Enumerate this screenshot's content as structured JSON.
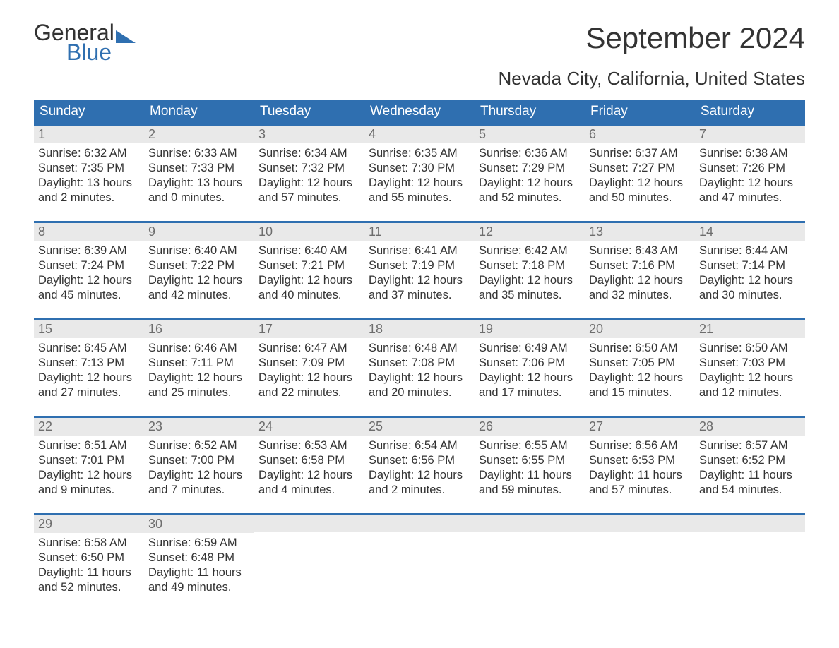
{
  "brand": {
    "top": "General",
    "bottom": "Blue"
  },
  "title": "September 2024",
  "subtitle": "Nevada City, California, United States",
  "colors": {
    "header_bg": "#2f6fb0",
    "header_text": "#ffffff",
    "daynum_bg": "#e9e9e9",
    "daynum_text": "#6d6d6d",
    "body_text": "#333333",
    "page_bg": "#ffffff",
    "week_border": "#2f6fb0",
    "brand_blue": "#2f6fb0"
  },
  "weekday_labels": [
    "Sunday",
    "Monday",
    "Tuesday",
    "Wednesday",
    "Thursday",
    "Friday",
    "Saturday"
  ],
  "labels": {
    "sunrise": "Sunrise:",
    "sunset": "Sunset:",
    "daylight": "Daylight:"
  },
  "weeks": [
    [
      {
        "n": "1",
        "sunrise": "6:32 AM",
        "sunset": "7:35 PM",
        "daylight1": "13 hours",
        "daylight2": "and 2 minutes."
      },
      {
        "n": "2",
        "sunrise": "6:33 AM",
        "sunset": "7:33 PM",
        "daylight1": "13 hours",
        "daylight2": "and 0 minutes."
      },
      {
        "n": "3",
        "sunrise": "6:34 AM",
        "sunset": "7:32 PM",
        "daylight1": "12 hours",
        "daylight2": "and 57 minutes."
      },
      {
        "n": "4",
        "sunrise": "6:35 AM",
        "sunset": "7:30 PM",
        "daylight1": "12 hours",
        "daylight2": "and 55 minutes."
      },
      {
        "n": "5",
        "sunrise": "6:36 AM",
        "sunset": "7:29 PM",
        "daylight1": "12 hours",
        "daylight2": "and 52 minutes."
      },
      {
        "n": "6",
        "sunrise": "6:37 AM",
        "sunset": "7:27 PM",
        "daylight1": "12 hours",
        "daylight2": "and 50 minutes."
      },
      {
        "n": "7",
        "sunrise": "6:38 AM",
        "sunset": "7:26 PM",
        "daylight1": "12 hours",
        "daylight2": "and 47 minutes."
      }
    ],
    [
      {
        "n": "8",
        "sunrise": "6:39 AM",
        "sunset": "7:24 PM",
        "daylight1": "12 hours",
        "daylight2": "and 45 minutes."
      },
      {
        "n": "9",
        "sunrise": "6:40 AM",
        "sunset": "7:22 PM",
        "daylight1": "12 hours",
        "daylight2": "and 42 minutes."
      },
      {
        "n": "10",
        "sunrise": "6:40 AM",
        "sunset": "7:21 PM",
        "daylight1": "12 hours",
        "daylight2": "and 40 minutes."
      },
      {
        "n": "11",
        "sunrise": "6:41 AM",
        "sunset": "7:19 PM",
        "daylight1": "12 hours",
        "daylight2": "and 37 minutes."
      },
      {
        "n": "12",
        "sunrise": "6:42 AM",
        "sunset": "7:18 PM",
        "daylight1": "12 hours",
        "daylight2": "and 35 minutes."
      },
      {
        "n": "13",
        "sunrise": "6:43 AM",
        "sunset": "7:16 PM",
        "daylight1": "12 hours",
        "daylight2": "and 32 minutes."
      },
      {
        "n": "14",
        "sunrise": "6:44 AM",
        "sunset": "7:14 PM",
        "daylight1": "12 hours",
        "daylight2": "and 30 minutes."
      }
    ],
    [
      {
        "n": "15",
        "sunrise": "6:45 AM",
        "sunset": "7:13 PM",
        "daylight1": "12 hours",
        "daylight2": "and 27 minutes."
      },
      {
        "n": "16",
        "sunrise": "6:46 AM",
        "sunset": "7:11 PM",
        "daylight1": "12 hours",
        "daylight2": "and 25 minutes."
      },
      {
        "n": "17",
        "sunrise": "6:47 AM",
        "sunset": "7:09 PM",
        "daylight1": "12 hours",
        "daylight2": "and 22 minutes."
      },
      {
        "n": "18",
        "sunrise": "6:48 AM",
        "sunset": "7:08 PM",
        "daylight1": "12 hours",
        "daylight2": "and 20 minutes."
      },
      {
        "n": "19",
        "sunrise": "6:49 AM",
        "sunset": "7:06 PM",
        "daylight1": "12 hours",
        "daylight2": "and 17 minutes."
      },
      {
        "n": "20",
        "sunrise": "6:50 AM",
        "sunset": "7:05 PM",
        "daylight1": "12 hours",
        "daylight2": "and 15 minutes."
      },
      {
        "n": "21",
        "sunrise": "6:50 AM",
        "sunset": "7:03 PM",
        "daylight1": "12 hours",
        "daylight2": "and 12 minutes."
      }
    ],
    [
      {
        "n": "22",
        "sunrise": "6:51 AM",
        "sunset": "7:01 PM",
        "daylight1": "12 hours",
        "daylight2": "and 9 minutes."
      },
      {
        "n": "23",
        "sunrise": "6:52 AM",
        "sunset": "7:00 PM",
        "daylight1": "12 hours",
        "daylight2": "and 7 minutes."
      },
      {
        "n": "24",
        "sunrise": "6:53 AM",
        "sunset": "6:58 PM",
        "daylight1": "12 hours",
        "daylight2": "and 4 minutes."
      },
      {
        "n": "25",
        "sunrise": "6:54 AM",
        "sunset": "6:56 PM",
        "daylight1": "12 hours",
        "daylight2": "and 2 minutes."
      },
      {
        "n": "26",
        "sunrise": "6:55 AM",
        "sunset": "6:55 PM",
        "daylight1": "11 hours",
        "daylight2": "and 59 minutes."
      },
      {
        "n": "27",
        "sunrise": "6:56 AM",
        "sunset": "6:53 PM",
        "daylight1": "11 hours",
        "daylight2": "and 57 minutes."
      },
      {
        "n": "28",
        "sunrise": "6:57 AM",
        "sunset": "6:52 PM",
        "daylight1": "11 hours",
        "daylight2": "and 54 minutes."
      }
    ],
    [
      {
        "n": "29",
        "sunrise": "6:58 AM",
        "sunset": "6:50 PM",
        "daylight1": "11 hours",
        "daylight2": "and 52 minutes."
      },
      {
        "n": "30",
        "sunrise": "6:59 AM",
        "sunset": "6:48 PM",
        "daylight1": "11 hours",
        "daylight2": "and 49 minutes."
      },
      {
        "empty": true
      },
      {
        "empty": true
      },
      {
        "empty": true
      },
      {
        "empty": true
      },
      {
        "empty": true
      }
    ]
  ]
}
